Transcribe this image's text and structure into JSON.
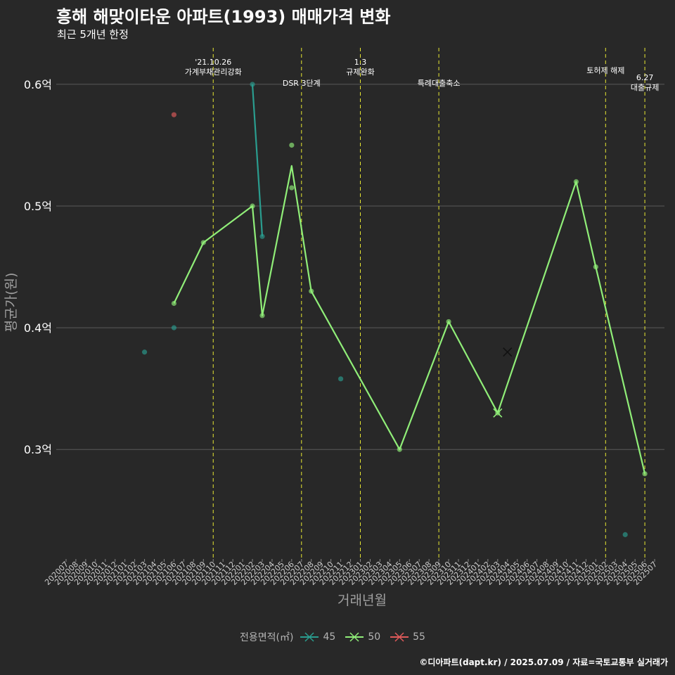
{
  "header": {
    "title": "흥해 해맞이타운 아파트(1993) 매매가격 변화",
    "subtitle": "최근 5개년 한정"
  },
  "caption": "©디아파트(dapt.kr) / 2025.07.09 / 자료=국토교통부 실거래가",
  "colors": {
    "background": "#282828",
    "grid": "#5a5a5a",
    "event_line": "#e8e832",
    "text": "#ffffff",
    "axis_title": "#a0a0a0"
  },
  "chart_data": {
    "type": "line",
    "title": "흥해 해맞이타운 아파트(1993) 매매가격 변화",
    "subtitle": "최근 5개년 한정",
    "xlabel": "거래년월",
    "ylabel": "평균가(원)",
    "ylim": [
      0.21,
      0.63
    ],
    "yticks": [
      0.3,
      0.4,
      0.5,
      0.6
    ],
    "ytick_labels": [
      "0.3억",
      "0.4억",
      "0.5억",
      "0.6억"
    ],
    "grid": true,
    "legend_position": "bottom",
    "legend_title": "전용면적(㎡)",
    "x": [
      "202007",
      "202008",
      "202009",
      "202010",
      "202011",
      "202012",
      "202101",
      "202102",
      "202103",
      "202104",
      "202105",
      "202106",
      "202107",
      "202108",
      "202109",
      "202110",
      "202111",
      "202112",
      "202201",
      "202202",
      "202203",
      "202204",
      "202205",
      "202206",
      "202207",
      "202208",
      "202209",
      "202210",
      "202211",
      "202212",
      "202301",
      "202302",
      "202303",
      "202304",
      "202305",
      "202306",
      "202307",
      "202308",
      "202309",
      "202310",
      "202311",
      "202312",
      "202401",
      "202402",
      "202403",
      "202404",
      "202405",
      "202406",
      "202407",
      "202408",
      "202409",
      "202410",
      "202411",
      "202412",
      "202501",
      "202502",
      "202503",
      "202504",
      "202505",
      "202506",
      "202507"
    ],
    "series": [
      {
        "name": "45",
        "color": "#2a9d8f",
        "line": [
          [
            "202202",
            0.6
          ],
          [
            "202203",
            0.475
          ]
        ],
        "points": [
          [
            "202103",
            0.38
          ],
          [
            "202106",
            0.4
          ],
          [
            "202202",
            0.6
          ],
          [
            "202203",
            0.475
          ],
          [
            "202211",
            0.358
          ],
          [
            "202504",
            0.23
          ]
        ]
      },
      {
        "name": "50",
        "color": "#90ee78",
        "line": [
          [
            "202106",
            0.42
          ],
          [
            "202109",
            0.47
          ],
          [
            "202202",
            0.5
          ],
          [
            "202203",
            0.41
          ],
          [
            "202206",
            0.533
          ],
          [
            "202208",
            0.43
          ],
          [
            "202305",
            0.3
          ],
          [
            "202310",
            0.405
          ],
          [
            "202403",
            0.33
          ],
          [
            "202411",
            0.52
          ],
          [
            "202501",
            0.45
          ],
          [
            "202506",
            0.28
          ]
        ],
        "points": [
          [
            "202106",
            0.42
          ],
          [
            "202109",
            0.47
          ],
          [
            "202202",
            0.5
          ],
          [
            "202203",
            0.41
          ],
          [
            "202206",
            0.55
          ],
          [
            "202206",
            0.515
          ],
          [
            "202208",
            0.43
          ],
          [
            "202305",
            0.3
          ],
          [
            "202310",
            0.405
          ],
          [
            "202403",
            0.33
          ],
          [
            "202411",
            0.52
          ],
          [
            "202501",
            0.45
          ],
          [
            "202506",
            0.28
          ]
        ]
      },
      {
        "name": "55",
        "color": "#e05a5a",
        "line": [],
        "points": [
          [
            "202106",
            0.575
          ]
        ]
      }
    ],
    "cross_markers": [
      {
        "x": "202403",
        "y": 0.33,
        "color": "#90ee78"
      },
      {
        "x": "202404",
        "y": 0.38,
        "color": "#111111"
      }
    ],
    "events": [
      {
        "x": "202110",
        "label": "'21.10.26\n가계부채관리강화",
        "level": 0
      },
      {
        "x": "202207",
        "label": "DSR 3단계",
        "level": 2
      },
      {
        "x": "202301",
        "label": "1.3\n규제완화",
        "level": 0
      },
      {
        "x": "202309",
        "label": "특례대출축소",
        "level": 2
      },
      {
        "x": "202502",
        "label": "토허제 해제",
        "level": 1
      },
      {
        "x": "202506",
        "label": "6.27\n대출규제",
        "level": 3
      }
    ]
  }
}
